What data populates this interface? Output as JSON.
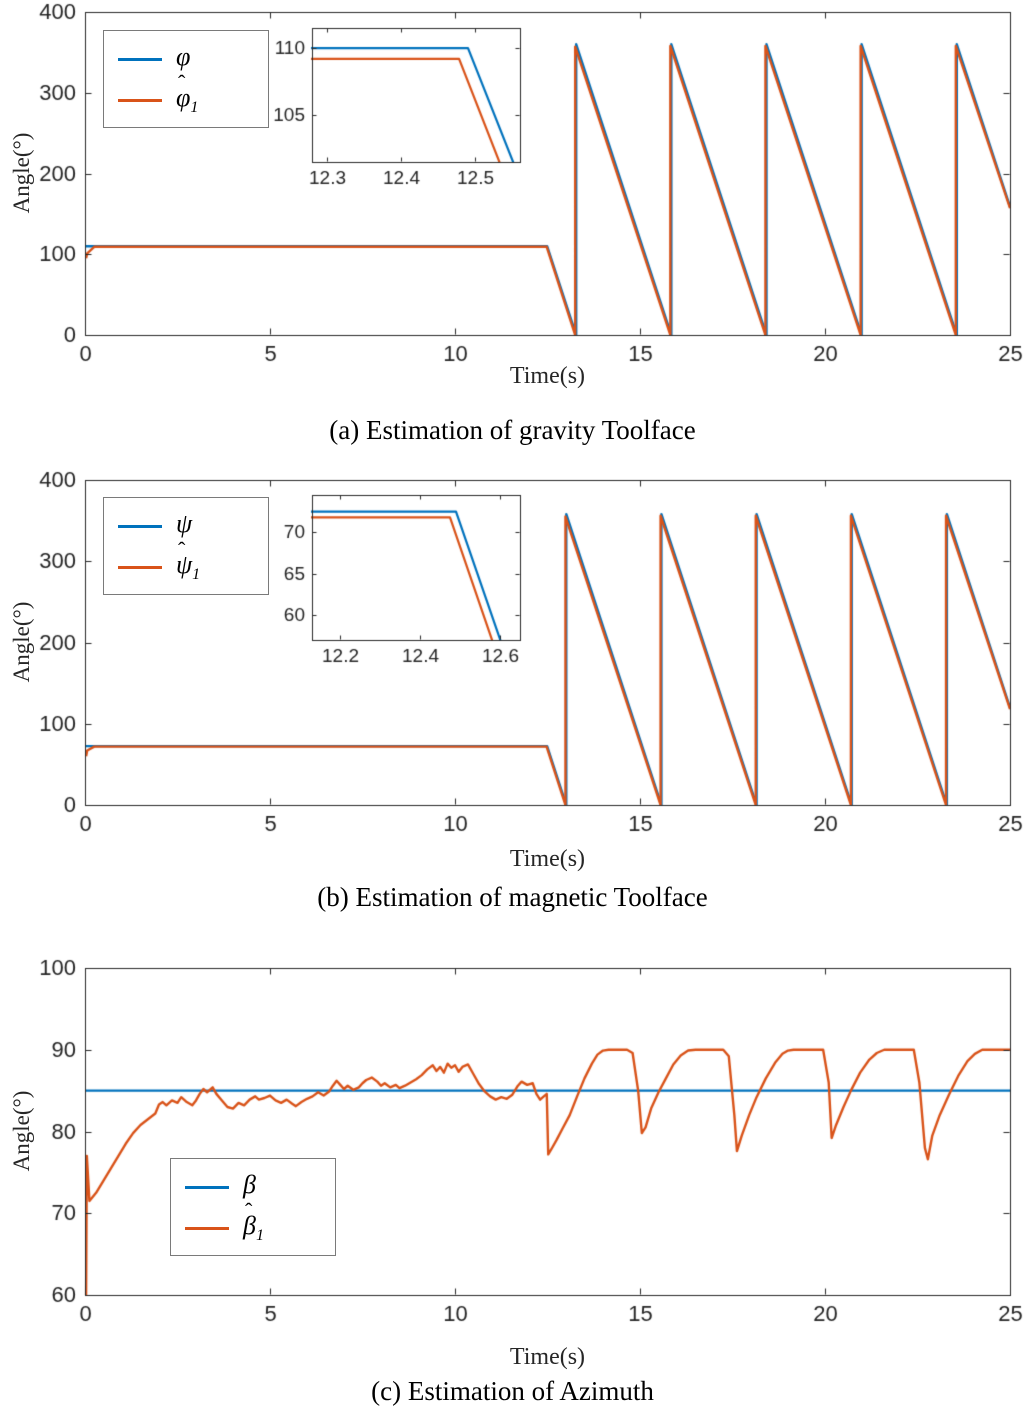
{
  "colors": {
    "blue": "#0072BD",
    "orange": "#D95319",
    "axis": "#262626"
  },
  "chart_data": [
    {
      "type": "line",
      "caption": "(a) Estimation of gravity Toolface",
      "xlabel": "Time(s)",
      "ylabel": "Angle(°)",
      "xlim": [
        0,
        25
      ],
      "ylim": [
        0,
        400
      ],
      "xticks": [
        0,
        5,
        10,
        15,
        20,
        25
      ],
      "xtick_labels": [
        "0",
        "5",
        "10",
        "15",
        "20",
        "25"
      ],
      "yticks": [
        0,
        100,
        200,
        300,
        400
      ],
      "ytick_labels": [
        "0",
        "100",
        "200",
        "300",
        "400"
      ],
      "grid": false,
      "legend": {
        "position": "top-left",
        "items": [
          {
            "base": "φ",
            "hat": "",
            "sub": "",
            "color": "blue"
          },
          {
            "base": "φ",
            "hat": "ˆ",
            "sub": "1",
            "color": "orange"
          }
        ]
      },
      "series": [
        {
          "name": "phi",
          "color": "blue",
          "points": [
            [
              0,
              110
            ],
            [
              12.49,
              110
            ],
            [
              13.276,
              0
            ],
            [
              13.276,
              360
            ],
            [
              15.847,
              0
            ],
            [
              15.847,
              360
            ],
            [
              18.419,
              0
            ],
            [
              18.419,
              360
            ],
            [
              20.99,
              0
            ],
            [
              20.99,
              360
            ],
            [
              23.562,
              0
            ],
            [
              23.562,
              360
            ],
            [
              25,
              159
            ]
          ]
        },
        {
          "name": "phi_hat_1",
          "color": "orange",
          "points": [
            [
              0.03,
              95
            ],
            [
              0.06,
              101
            ],
            [
              0.25,
              109.2
            ],
            [
              12.478,
              109.2
            ],
            [
              13.248,
              0
            ],
            [
              13.248,
              357
            ],
            [
              15.82,
              0
            ],
            [
              15.82,
              358
            ],
            [
              18.39,
              0
            ],
            [
              18.39,
              358
            ],
            [
              20.963,
              0
            ],
            [
              20.963,
              358
            ],
            [
              23.535,
              0
            ],
            [
              23.535,
              358
            ],
            [
              25,
              157
            ]
          ]
        }
      ],
      "inset": {
        "xlim": [
          12.28,
          12.56
        ],
        "ylim": [
          101.5,
          111.5
        ],
        "xticks": [
          12.3,
          12.4,
          12.5
        ],
        "xtick_labels": [
          "12.3",
          "12.4",
          "12.5"
        ],
        "yticks": [
          105,
          110
        ],
        "ytick_labels": [
          "105",
          "110"
        ]
      }
    },
    {
      "type": "line",
      "caption": "(b) Estimation of magnetic Toolface",
      "xlabel": "Time(s)",
      "ylabel": "Angle(°)",
      "xlim": [
        0,
        25
      ],
      "ylim": [
        0,
        400
      ],
      "xticks": [
        0,
        5,
        10,
        15,
        20,
        25
      ],
      "xtick_labels": [
        "0",
        "5",
        "10",
        "15",
        "20",
        "25"
      ],
      "yticks": [
        0,
        100,
        200,
        300,
        400
      ],
      "ytick_labels": [
        "0",
        "100",
        "200",
        "300",
        "400"
      ],
      "grid": false,
      "legend": {
        "position": "top-left",
        "items": [
          {
            "base": "ψ",
            "hat": "",
            "sub": "",
            "color": "blue"
          },
          {
            "base": "ψ",
            "hat": "ˆ",
            "sub": "1",
            "color": "orange"
          }
        ]
      },
      "series": [
        {
          "name": "psi",
          "color": "blue",
          "points": [
            [
              0,
              72.5
            ],
            [
              12.49,
              72.5
            ],
            [
              13.008,
              0
            ],
            [
              13.008,
              358
            ],
            [
              15.579,
              0
            ],
            [
              15.579,
              358
            ],
            [
              18.151,
              0
            ],
            [
              18.151,
              358
            ],
            [
              20.722,
              0
            ],
            [
              20.722,
              358
            ],
            [
              23.294,
              0
            ],
            [
              23.294,
              358
            ],
            [
              25,
              120
            ]
          ]
        },
        {
          "name": "psi_hat_1",
          "color": "orange",
          "points": [
            [
              0.03,
              60
            ],
            [
              0.06,
              67
            ],
            [
              0.25,
              71.8
            ],
            [
              12.475,
              71.8
            ],
            [
              12.985,
              0
            ],
            [
              12.985,
              355
            ],
            [
              15.556,
              0
            ],
            [
              15.556,
              356
            ],
            [
              18.128,
              0
            ],
            [
              18.128,
              356
            ],
            [
              20.7,
              0
            ],
            [
              20.7,
              356
            ],
            [
              23.271,
              0
            ],
            [
              23.271,
              356
            ],
            [
              25,
              118
            ]
          ]
        }
      ],
      "inset": {
        "xlim": [
          12.13,
          12.65
        ],
        "ylim": [
          57,
          74.5
        ],
        "xticks": [
          12.2,
          12.4,
          12.6
        ],
        "xtick_labels": [
          "12.2",
          "12.4",
          "12.6"
        ],
        "yticks": [
          60,
          65,
          70
        ],
        "ytick_labels": [
          "60",
          "65",
          "70"
        ]
      }
    },
    {
      "type": "line",
      "caption": "(c) Estimation of Azimuth",
      "xlabel": "Time(s)",
      "ylabel": "Angle(°)",
      "xlim": [
        0,
        25
      ],
      "ylim": [
        60,
        100
      ],
      "xticks": [
        0,
        5,
        10,
        15,
        20,
        25
      ],
      "xtick_labels": [
        "0",
        "5",
        "10",
        "15",
        "20",
        "25"
      ],
      "yticks": [
        60,
        70,
        80,
        90,
        100
      ],
      "ytick_labels": [
        "60",
        "70",
        "80",
        "90",
        "100"
      ],
      "grid": false,
      "legend": {
        "position": "lower-left",
        "items": [
          {
            "base": "β",
            "hat": "",
            "sub": "",
            "color": "blue"
          },
          {
            "base": "β",
            "hat": "ˆ",
            "sub": "1",
            "color": "orange"
          }
        ]
      },
      "series": [
        {
          "name": "beta",
          "color": "blue",
          "points": [
            [
              0,
              85
            ],
            [
              25,
              85
            ]
          ]
        },
        {
          "name": "beta_hat_1",
          "color": "orange",
          "points": [
            [
              0.03,
              60
            ],
            [
              0.05,
              77
            ],
            [
              0.12,
              71.5
            ],
            [
              0.3,
              72.5
            ],
            [
              0.5,
              74
            ],
            [
              0.7,
              75.5
            ],
            [
              0.9,
              77
            ],
            [
              1.1,
              78.5
            ],
            [
              1.3,
              79.8
            ],
            [
              1.5,
              80.8
            ],
            [
              1.7,
              81.5
            ],
            [
              1.9,
              82.2
            ],
            [
              2.0,
              83.3
            ],
            [
              2.1,
              83.6
            ],
            [
              2.2,
              83.2
            ],
            [
              2.35,
              83.8
            ],
            [
              2.5,
              83.5
            ],
            [
              2.6,
              84.2
            ],
            [
              2.75,
              83.6
            ],
            [
              2.9,
              83.2
            ],
            [
              3.0,
              83.8
            ],
            [
              3.1,
              84.6
            ],
            [
              3.2,
              85.2
            ],
            [
              3.3,
              84.8
            ],
            [
              3.45,
              85.4
            ],
            [
              3.55,
              84.6
            ],
            [
              3.7,
              83.8
            ],
            [
              3.85,
              83.0
            ],
            [
              4.0,
              82.8
            ],
            [
              4.15,
              83.5
            ],
            [
              4.3,
              83.2
            ],
            [
              4.45,
              83.9
            ],
            [
              4.6,
              84.3
            ],
            [
              4.7,
              83.9
            ],
            [
              4.85,
              84.1
            ],
            [
              5.0,
              84.4
            ],
            [
              5.15,
              83.8
            ],
            [
              5.3,
              83.5
            ],
            [
              5.45,
              83.9
            ],
            [
              5.6,
              83.4
            ],
            [
              5.7,
              83.1
            ],
            [
              5.85,
              83.6
            ],
            [
              6.0,
              84.0
            ],
            [
              6.15,
              84.3
            ],
            [
              6.3,
              84.8
            ],
            [
              6.45,
              84.4
            ],
            [
              6.6,
              84.9
            ],
            [
              6.7,
              85.6
            ],
            [
              6.8,
              86.2
            ],
            [
              6.9,
              85.7
            ],
            [
              7.0,
              85.2
            ],
            [
              7.1,
              85.6
            ],
            [
              7.25,
              85.1
            ],
            [
              7.4,
              85.4
            ],
            [
              7.5,
              85.9
            ],
            [
              7.6,
              86.3
            ],
            [
              7.75,
              86.6
            ],
            [
              7.9,
              86.1
            ],
            [
              8.0,
              85.6
            ],
            [
              8.1,
              85.9
            ],
            [
              8.25,
              85.4
            ],
            [
              8.4,
              85.7
            ],
            [
              8.5,
              85.3
            ],
            [
              8.65,
              85.6
            ],
            [
              8.8,
              86.0
            ],
            [
              8.95,
              86.4
            ],
            [
              9.1,
              86.9
            ],
            [
              9.25,
              87.6
            ],
            [
              9.4,
              88.1
            ],
            [
              9.5,
              87.4
            ],
            [
              9.6,
              87.9
            ],
            [
              9.7,
              87.2
            ],
            [
              9.8,
              88.3
            ],
            [
              9.9,
              87.8
            ],
            [
              10.0,
              88.1
            ],
            [
              10.1,
              87.3
            ],
            [
              10.2,
              87.9
            ],
            [
              10.35,
              88.2
            ],
            [
              10.5,
              87.0
            ],
            [
              10.65,
              85.8
            ],
            [
              10.8,
              84.9
            ],
            [
              10.95,
              84.3
            ],
            [
              11.1,
              83.9
            ],
            [
              11.25,
              84.2
            ],
            [
              11.4,
              84.0
            ],
            [
              11.55,
              84.5
            ],
            [
              11.7,
              85.6
            ],
            [
              11.8,
              86.1
            ],
            [
              11.95,
              85.7
            ],
            [
              12.1,
              85.9
            ],
            [
              12.2,
              84.6
            ],
            [
              12.3,
              83.9
            ],
            [
              12.4,
              84.3
            ],
            [
              12.48,
              84.6
            ],
            [
              12.52,
              77.2
            ],
            [
              12.6,
              77.8
            ],
            [
              12.75,
              79
            ],
            [
              12.9,
              80.3
            ],
            [
              13.1,
              82
            ],
            [
              13.3,
              84.3
            ],
            [
              13.5,
              86.5
            ],
            [
              13.7,
              88.3
            ],
            [
              13.85,
              89.4
            ],
            [
              14.0,
              89.9
            ],
            [
              14.15,
              90
            ],
            [
              14.65,
              90
            ],
            [
              14.8,
              89.6
            ],
            [
              14.95,
              85
            ],
            [
              15.05,
              79.8
            ],
            [
              15.15,
              80.5
            ],
            [
              15.3,
              82.8
            ],
            [
              15.5,
              84.8
            ],
            [
              15.7,
              86.5
            ],
            [
              15.9,
              88.2
            ],
            [
              16.1,
              89.3
            ],
            [
              16.3,
              89.9
            ],
            [
              16.5,
              90
            ],
            [
              17.25,
              90
            ],
            [
              17.4,
              89.2
            ],
            [
              17.55,
              82
            ],
            [
              17.62,
              77.6
            ],
            [
              17.75,
              79.5
            ],
            [
              17.95,
              82
            ],
            [
              18.15,
              84.2
            ],
            [
              18.4,
              86.5
            ],
            [
              18.65,
              88.4
            ],
            [
              18.85,
              89.5
            ],
            [
              19.0,
              89.9
            ],
            [
              19.15,
              90
            ],
            [
              19.95,
              90
            ],
            [
              20.1,
              86
            ],
            [
              20.18,
              79.2
            ],
            [
              20.3,
              80.8
            ],
            [
              20.5,
              83
            ],
            [
              20.7,
              85
            ],
            [
              20.95,
              87.2
            ],
            [
              21.2,
              88.8
            ],
            [
              21.4,
              89.6
            ],
            [
              21.6,
              90
            ],
            [
              22.4,
              90
            ],
            [
              22.55,
              86
            ],
            [
              22.7,
              78
            ],
            [
              22.78,
              76.6
            ],
            [
              22.9,
              79.5
            ],
            [
              23.1,
              82
            ],
            [
              23.35,
              84.5
            ],
            [
              23.6,
              86.8
            ],
            [
              23.85,
              88.6
            ],
            [
              24.05,
              89.5
            ],
            [
              24.25,
              90
            ],
            [
              25,
              90
            ]
          ]
        }
      ],
      "inset": null
    }
  ]
}
